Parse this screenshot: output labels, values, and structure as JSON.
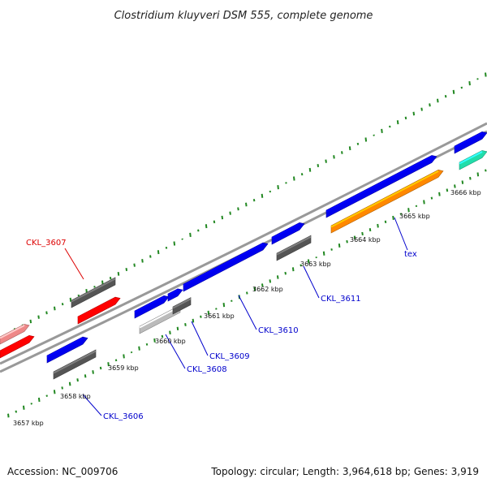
{
  "title": "Clostridium kluyveri DSM 555, complete genome",
  "footer": {
    "accession": "Accession: NC_009706",
    "summary": "Topology: circular; Length: 3,964,618 bp; Genes: 3,919"
  },
  "colors": {
    "forward_cds": "#0000ee",
    "reverse_cds": "#555555",
    "light_cds": "#bbbbbb",
    "red_feature": "#ff0000",
    "pink_feature": "#ee8888",
    "orange_feature": "#ff8800",
    "teal_feature": "#22ddaa",
    "backbone": "#888888",
    "gc_ticks": "#228822",
    "label_blue": "#0000cc",
    "label_red": "#dd0000"
  },
  "scale_labels": [
    "3657 kbp",
    "3658 kbp",
    "3659 kbp",
    "3660 kbp",
    "3661 kbp",
    "3662 kbp",
    "3663 kbp",
    "3664 kbp",
    "3665 kbp",
    "3666 kbp"
  ],
  "gene_labels": [
    {
      "text": "CKL_3606",
      "color": "blue"
    },
    {
      "text": "CKL_3607",
      "color": "red"
    },
    {
      "text": "CKL_3608",
      "color": "blue"
    },
    {
      "text": "CKL_3609",
      "color": "blue"
    },
    {
      "text": "CKL_3610",
      "color": "blue"
    },
    {
      "text": "CKL_3611",
      "color": "blue"
    },
    {
      "text": "tex",
      "color": "blue"
    }
  ]
}
